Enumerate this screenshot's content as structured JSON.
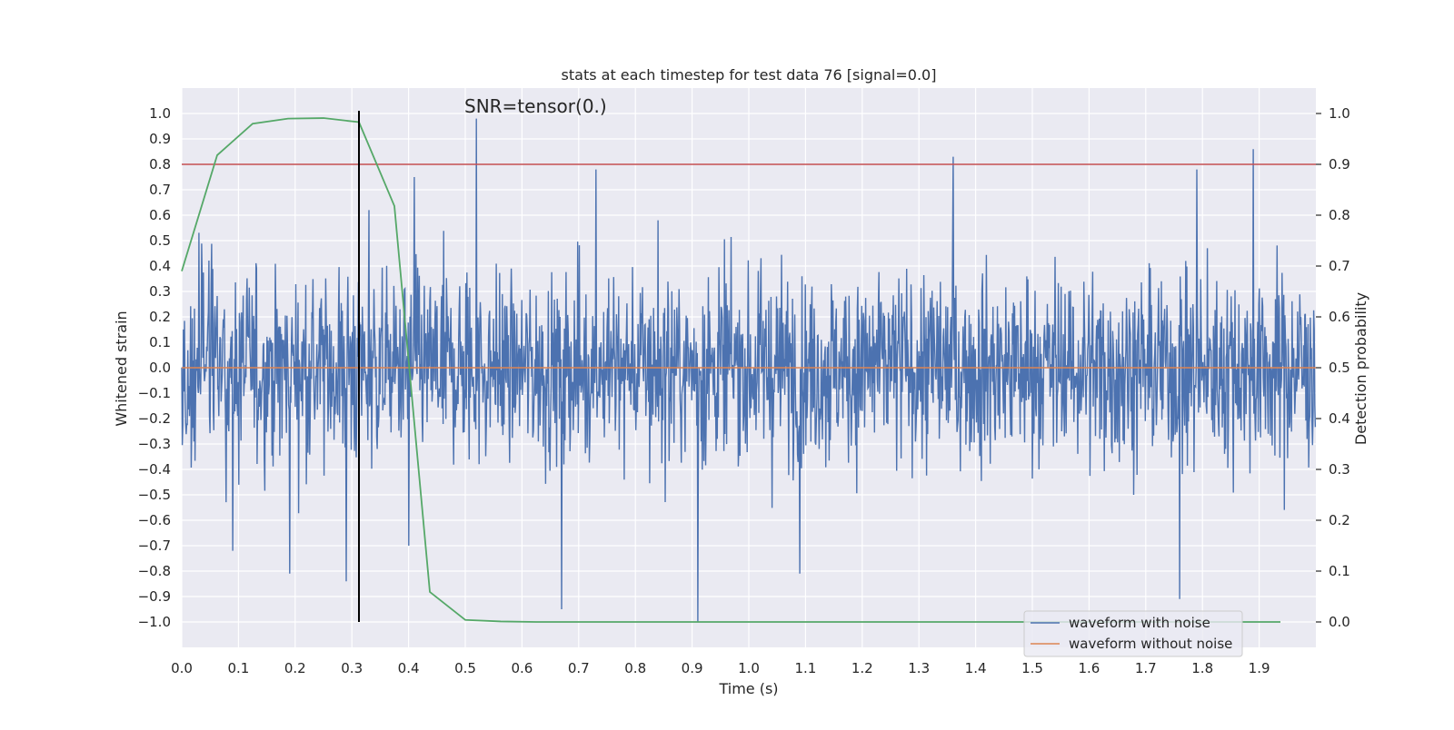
{
  "chart_data": {
    "type": "line",
    "title": "stats at each timestep for test data 76 [signal=0.0]",
    "xlabel": "Time (s)",
    "ylabel": "Whitened strain",
    "y2label": "Detection probability",
    "annotation": "SNR=tensor(0.)",
    "xlim": [
      0.0,
      2.0
    ],
    "ylim": [
      -1.1,
      1.1
    ],
    "y2lim": [
      -0.05,
      1.05
    ],
    "x_ticks": [
      "0.0",
      "0.1",
      "0.2",
      "0.3",
      "0.4",
      "0.5",
      "0.6",
      "0.7",
      "0.8",
      "0.9",
      "1.0",
      "1.1",
      "1.2",
      "1.3",
      "1.4",
      "1.5",
      "1.6",
      "1.7",
      "1.8",
      "1.9"
    ],
    "y_ticks": [
      "1.0",
      "0.9",
      "0.8",
      "0.7",
      "0.6",
      "0.5",
      "0.4",
      "0.3",
      "0.2",
      "0.1",
      "0.0",
      "−0.1",
      "−0.2",
      "−0.3",
      "−0.4",
      "−0.5",
      "−0.6",
      "−0.7",
      "−0.8",
      "−0.9",
      "−1.0"
    ],
    "y2_ticks": [
      "1.0",
      "0.9",
      "0.8",
      "0.7",
      "0.6",
      "0.5",
      "0.4",
      "0.3",
      "0.2",
      "0.1",
      "0.0"
    ],
    "grid": true,
    "legend_position": "lower-right",
    "colors": {
      "background": "#eaeaf2",
      "grid": "#ffffff",
      "noisy": "#4c72b0",
      "clean": "#dd8452",
      "probability": "#55a868",
      "threshold": "#c44e52",
      "marker": "#000000"
    },
    "series": [
      {
        "name": "waveform with noise",
        "axis": "left",
        "style": "dense noise",
        "x_range": [
          0.0,
          2.0
        ],
        "baseline_amplitude": 0.22,
        "peaks": [
          [
            0.52,
            0.98
          ],
          [
            0.84,
            0.58
          ],
          [
            1.36,
            0.83
          ],
          [
            1.89,
            0.86
          ],
          [
            0.41,
            0.75
          ],
          [
            1.79,
            0.78
          ],
          [
            0.33,
            0.62
          ],
          [
            0.73,
            0.78
          ],
          [
            0.67,
            -0.95
          ],
          [
            0.91,
            -1.0
          ],
          [
            1.76,
            -0.91
          ],
          [
            0.19,
            -0.81
          ],
          [
            1.09,
            -0.81
          ],
          [
            0.29,
            -0.84
          ],
          [
            0.09,
            -0.72
          ],
          [
            0.4,
            -0.7
          ]
        ]
      },
      {
        "name": "waveform without noise",
        "axis": "left",
        "x": [
          0.0,
          2.0
        ],
        "values": [
          0.0,
          0.0
        ]
      },
      {
        "name": "detection probability",
        "axis": "right",
        "x": [
          0.0,
          0.0625,
          0.125,
          0.1875,
          0.25,
          0.3125,
          0.375,
          0.4375,
          0.5,
          0.5625,
          0.625,
          0.75,
          1.0,
          1.25,
          1.5,
          1.75,
          1.9375
        ],
        "values": [
          0.69,
          0.918,
          0.98,
          0.99,
          0.991,
          0.983,
          0.818,
          0.059,
          0.004,
          0.001,
          0.0,
          0.0,
          0.0,
          0.0,
          0.0,
          0.0,
          0.0
        ]
      }
    ],
    "threshold_y2": 0.9,
    "marker_x": 0.3125,
    "marker_span": [
      -1.0,
      1.0
    ]
  }
}
